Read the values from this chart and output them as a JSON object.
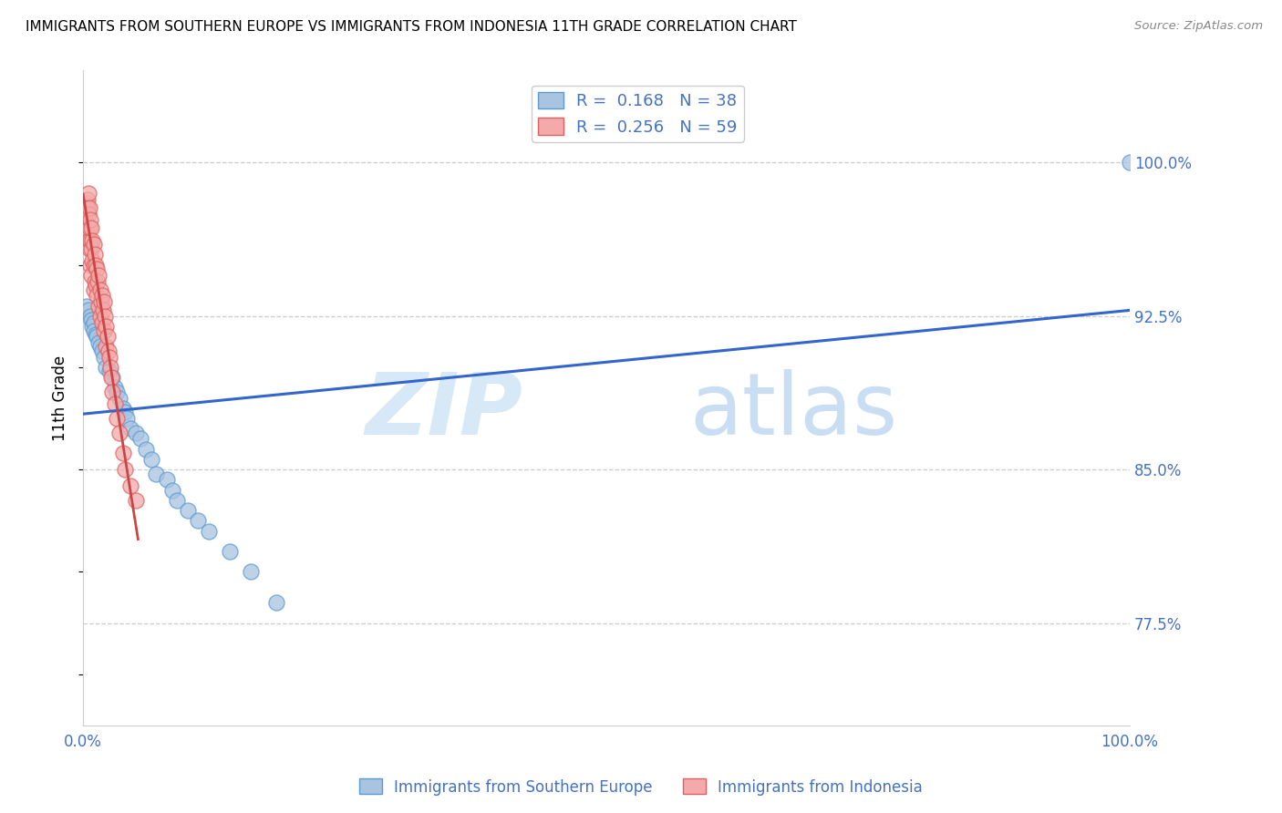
{
  "title": "IMMIGRANTS FROM SOUTHERN EUROPE VS IMMIGRANTS FROM INDONESIA 11TH GRADE CORRELATION CHART",
  "source": "Source: ZipAtlas.com",
  "ylabel": "11th Grade",
  "watermark_zip": "ZIP",
  "watermark_atlas": "atlas",
  "r_blue": 0.168,
  "n_blue": 38,
  "r_pink": 0.256,
  "n_pink": 59,
  "legend_blue": "Immigrants from Southern Europe",
  "legend_pink": "Immigrants from Indonesia",
  "y_tick_labels": [
    "77.5%",
    "85.0%",
    "92.5%",
    "100.0%"
  ],
  "y_tick_values": [
    0.775,
    0.85,
    0.925,
    1.0
  ],
  "xlim": [
    0.0,
    1.0
  ],
  "ylim": [
    0.725,
    1.045
  ],
  "blue_fill_color": "#A8C4E0",
  "blue_edge_color": "#5B9BD5",
  "pink_fill_color": "#F4AAAA",
  "pink_edge_color": "#E06060",
  "blue_line_color": "#3366CC",
  "pink_line_color": "#CC4444",
  "axis_label_color": "#4472C4",
  "grid_color": "#CCCCCC",
  "blue_scatter_x": [
    0.003,
    0.005,
    0.007,
    0.008,
    0.009,
    0.01,
    0.01,
    0.012,
    0.013,
    0.015,
    0.016,
    0.018,
    0.02,
    0.022,
    0.025,
    0.028,
    0.03,
    0.032,
    0.035,
    0.038,
    0.04,
    0.042,
    0.045,
    0.05,
    0.055,
    0.06,
    0.065,
    0.07,
    0.08,
    0.085,
    0.09,
    0.1,
    0.11,
    0.12,
    0.14,
    0.16,
    0.185,
    1.0
  ],
  "blue_scatter_y": [
    0.93,
    0.928,
    0.925,
    0.923,
    0.92,
    0.922,
    0.918,
    0.916,
    0.915,
    0.912,
    0.91,
    0.908,
    0.905,
    0.9,
    0.898,
    0.895,
    0.89,
    0.888,
    0.885,
    0.88,
    0.878,
    0.875,
    0.87,
    0.868,
    0.865,
    0.86,
    0.855,
    0.848,
    0.845,
    0.84,
    0.835,
    0.83,
    0.825,
    0.82,
    0.81,
    0.8,
    0.785,
    1.0
  ],
  "pink_scatter_x": [
    0.001,
    0.002,
    0.002,
    0.003,
    0.003,
    0.003,
    0.004,
    0.004,
    0.004,
    0.005,
    0.005,
    0.005,
    0.006,
    0.006,
    0.006,
    0.007,
    0.007,
    0.007,
    0.008,
    0.008,
    0.008,
    0.009,
    0.009,
    0.01,
    0.01,
    0.01,
    0.011,
    0.011,
    0.012,
    0.012,
    0.013,
    0.013,
    0.014,
    0.015,
    0.015,
    0.016,
    0.016,
    0.017,
    0.018,
    0.018,
    0.019,
    0.02,
    0.02,
    0.021,
    0.022,
    0.022,
    0.023,
    0.024,
    0.025,
    0.026,
    0.027,
    0.028,
    0.03,
    0.032,
    0.035,
    0.038,
    0.04,
    0.045,
    0.05
  ],
  "pink_scatter_y": [
    0.975,
    0.972,
    0.968,
    0.98,
    0.976,
    0.97,
    0.982,
    0.978,
    0.965,
    0.985,
    0.975,
    0.962,
    0.978,
    0.968,
    0.958,
    0.972,
    0.962,
    0.95,
    0.968,
    0.958,
    0.945,
    0.962,
    0.952,
    0.96,
    0.95,
    0.938,
    0.955,
    0.942,
    0.95,
    0.94,
    0.948,
    0.935,
    0.942,
    0.945,
    0.93,
    0.938,
    0.925,
    0.932,
    0.935,
    0.922,
    0.928,
    0.932,
    0.918,
    0.925,
    0.92,
    0.91,
    0.915,
    0.908,
    0.905,
    0.9,
    0.895,
    0.888,
    0.882,
    0.875,
    0.868,
    0.858,
    0.85,
    0.842,
    0.835
  ]
}
